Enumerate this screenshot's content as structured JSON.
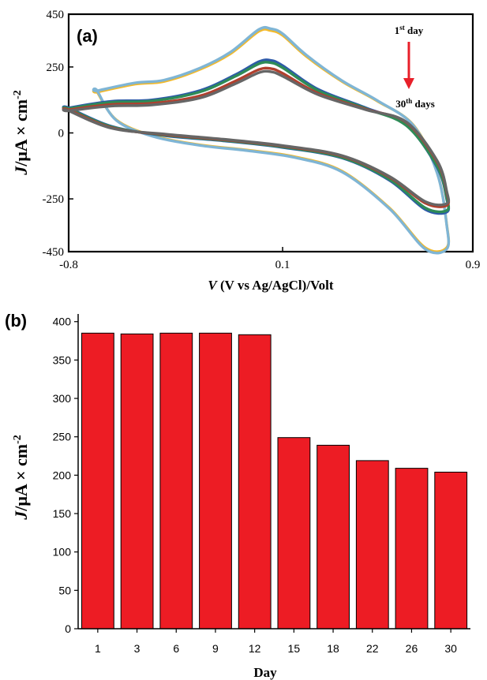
{
  "chart_data": [
    {
      "type": "line",
      "panel_label": "(a)",
      "xlabel_var": "V",
      "xlabel_rest": " (V vs Ag/AgCl)/Volt",
      "ylabel_var": "J",
      "ylabel_rest": "/μA × cm",
      "ylabel_sup": "-2",
      "xlim": [
        -0.8,
        0.9
      ],
      "ylim": [
        -450,
        450
      ],
      "x_ticks": [
        "-0.8",
        "0.1",
        "0.9"
      ],
      "y_ticks": [
        "450",
        "250",
        "0",
        "-250",
        "-450"
      ],
      "grid": false,
      "annotation_top": "1",
      "annotation_top_sup": "st",
      "annotation_top_rest": " day",
      "annotation_bottom": "30",
      "annotation_bottom_sup": "th",
      "annotation_bottom_rest": " days",
      "arrow_color": "#e8202a",
      "series": [
        {
          "color": "#f2b92b",
          "x": [
            -0.68,
            -0.52,
            -0.4,
            -0.25,
            -0.12,
            0.0,
            0.05,
            0.1,
            0.2,
            0.35,
            0.5,
            0.65,
            0.75,
            0.79,
            0.79,
            0.7,
            0.55,
            0.35,
            0.15,
            -0.05,
            -0.25,
            -0.45,
            -0.6,
            -0.68
          ],
          "y": [
            155,
            185,
            195,
            240,
            300,
            385,
            388,
            370,
            290,
            195,
            120,
            30,
            -150,
            -345,
            -435,
            -435,
            -285,
            -145,
            -90,
            -65,
            -45,
            -10,
            50,
            155
          ]
        },
        {
          "color": "#7fb5d5",
          "x": [
            -0.68,
            -0.52,
            -0.4,
            -0.25,
            -0.12,
            0.0,
            0.05,
            0.1,
            0.2,
            0.35,
            0.5,
            0.65,
            0.75,
            0.79,
            0.79,
            0.7,
            0.55,
            0.35,
            0.15,
            -0.05,
            -0.25,
            -0.45,
            -0.6,
            -0.68
          ],
          "y": [
            160,
            190,
            200,
            245,
            306,
            392,
            395,
            376,
            295,
            198,
            122,
            28,
            -152,
            -348,
            -440,
            -440,
            -288,
            -148,
            -93,
            -67,
            -47,
            -12,
            48,
            160
          ]
        },
        {
          "color": "#2d5aa8",
          "x": [
            -0.8,
            -0.62,
            -0.45,
            -0.25,
            -0.1,
            0.0,
            0.05,
            0.1,
            0.25,
            0.45,
            0.62,
            0.75,
            0.79,
            0.79,
            0.7,
            0.55,
            0.35,
            0.1,
            -0.15,
            -0.4,
            -0.62,
            -0.8
          ],
          "y": [
            95,
            120,
            125,
            160,
            220,
            270,
            275,
            255,
            165,
            95,
            30,
            -130,
            -250,
            -300,
            -290,
            -180,
            -95,
            -55,
            -30,
            -10,
            25,
            95
          ]
        },
        {
          "color": "#2e8b57",
          "x": [
            -0.8,
            -0.62,
            -0.45,
            -0.25,
            -0.1,
            0.0,
            0.05,
            0.1,
            0.25,
            0.45,
            0.62,
            0.75,
            0.79,
            0.79,
            0.7,
            0.55,
            0.35,
            0.1,
            -0.15,
            -0.4,
            -0.62,
            -0.8
          ],
          "y": [
            92,
            116,
            121,
            155,
            214,
            262,
            266,
            247,
            160,
            92,
            28,
            -126,
            -244,
            -294,
            -284,
            -176,
            -93,
            -53,
            -28,
            -8,
            23,
            92
          ]
        },
        {
          "color": "#b0402e",
          "x": [
            -0.8,
            -0.62,
            -0.45,
            -0.25,
            -0.1,
            0.0,
            0.05,
            0.1,
            0.25,
            0.45,
            0.62,
            0.75,
            0.79,
            0.79,
            0.7,
            0.55,
            0.35,
            0.1,
            -0.15,
            -0.4,
            -0.62,
            -0.8
          ],
          "y": [
            88,
            108,
            112,
            140,
            196,
            240,
            244,
            226,
            150,
            90,
            40,
            -110,
            -225,
            -275,
            -266,
            -168,
            -88,
            -50,
            -26,
            -6,
            20,
            88
          ]
        },
        {
          "color": "#666666",
          "x": [
            -0.8,
            -0.62,
            -0.45,
            -0.25,
            -0.1,
            0.0,
            0.05,
            0.1,
            0.25,
            0.45,
            0.62,
            0.75,
            0.79,
            0.79,
            0.7,
            0.55,
            0.35,
            0.1,
            -0.15,
            -0.4,
            -0.62,
            -0.8
          ],
          "y": [
            84,
            102,
            106,
            132,
            186,
            228,
            232,
            215,
            145,
            88,
            42,
            -105,
            -220,
            -268,
            -260,
            -165,
            -86,
            -48,
            -24,
            -4,
            18,
            84
          ]
        }
      ]
    },
    {
      "type": "bar",
      "panel_label": "(b)",
      "xlabel": "Day",
      "ylabel_var": "J",
      "ylabel_rest": "/μA × cm",
      "ylabel_sup": "-2",
      "ylim": [
        0,
        410
      ],
      "y_ticks": [
        0,
        50,
        100,
        150,
        200,
        250,
        300,
        350,
        400
      ],
      "categories": [
        "1",
        "3",
        "6",
        "9",
        "12",
        "15",
        "18",
        "22",
        "26",
        "30"
      ],
      "values": [
        385,
        384,
        385,
        385,
        383,
        249,
        239,
        219,
        209,
        204
      ],
      "bar_color": "#ed1c24",
      "grid": false
    }
  ]
}
